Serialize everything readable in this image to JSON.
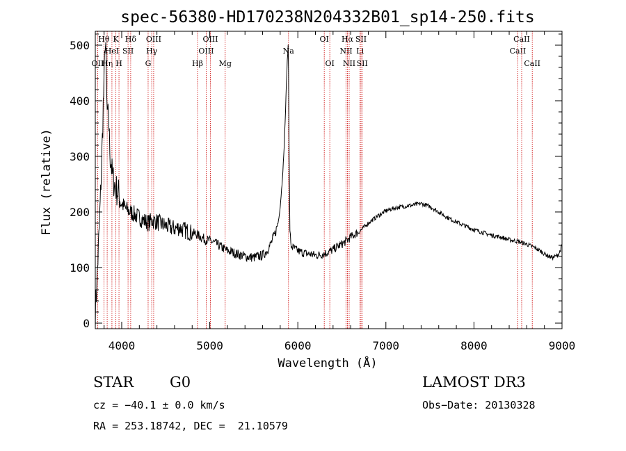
{
  "chart_data": {
    "type": "line",
    "title": "spec-56380-HD170238N204332B01_sp14-250.fits",
    "xlabel": "Wavelength (Å)",
    "ylabel": "Flux (relative)",
    "xlim": [
      3700,
      9000
    ],
    "ylim": [
      -10,
      525
    ],
    "xticks": [
      4000,
      5000,
      6000,
      7000,
      8000,
      9000
    ],
    "yticks": [
      0,
      100,
      200,
      300,
      400,
      500
    ],
    "grid": false,
    "line_color": "#000000",
    "marker_color": "#cc0000",
    "series": [
      {
        "x": [
          3700,
          3720,
          3740,
          3760,
          3780,
          3790,
          3800,
          3810,
          3820,
          3830,
          3840,
          3850,
          3860,
          3870,
          3880,
          3890,
          3900,
          3920,
          3940,
          3960,
          3980,
          4000,
          4050,
          4100,
          4150,
          4200,
          4250,
          4300,
          4350,
          4400,
          4450,
          4500,
          4550,
          4600,
          4650,
          4700,
          4750,
          4800,
          4850,
          4900,
          4950,
          5000,
          5050,
          5100,
          5150,
          5200,
          5250,
          5300,
          5400,
          5500,
          5600,
          5650,
          5700,
          5750,
          5780,
          5800,
          5820,
          5840,
          5860,
          5870,
          5880,
          5890,
          5895,
          5900,
          5910,
          5920,
          5950,
          6000,
          6050,
          6100,
          6150,
          6200,
          6250,
          6300,
          6350,
          6400,
          6450,
          6500,
          6550,
          6600,
          6650,
          6700,
          6750,
          6800,
          6900,
          7000,
          7100,
          7200,
          7300,
          7400,
          7500,
          7600,
          7700,
          7800,
          7900,
          8000,
          8100,
          8200,
          8300,
          8400,
          8500,
          8600,
          8700,
          8750,
          8800,
          8850,
          8900,
          8950,
          8980,
          9000
        ],
        "y": [
          20,
          80,
          150,
          230,
          330,
          390,
          430,
          510,
          480,
          400,
          360,
          380,
          330,
          300,
          290,
          270,
          260,
          250,
          240,
          235,
          225,
          215,
          205,
          200,
          195,
          190,
          185,
          180,
          185,
          182,
          178,
          175,
          172,
          170,
          172,
          168,
          165,
          162,
          160,
          155,
          150,
          148,
          145,
          140,
          135,
          130,
          128,
          125,
          120,
          118,
          122,
          130,
          145,
          165,
          185,
          210,
          250,
          300,
          380,
          430,
          470,
          500,
          450,
          320,
          170,
          140,
          135,
          130,
          127,
          125,
          124,
          122,
          123,
          125,
          128,
          132,
          138,
          142,
          148,
          155,
          160,
          165,
          172,
          180,
          192,
          202,
          207,
          210,
          212,
          215,
          210,
          200,
          190,
          182,
          175,
          168,
          163,
          158,
          155,
          150,
          147,
          142,
          135,
          130,
          125,
          120,
          118,
          122,
          130,
          140
        ]
      }
    ],
    "line_markers": [
      {
        "name": "OII",
        "x": 3727,
        "row": 2
      },
      {
        "name": "Hθ",
        "x": 3798,
        "row": 0
      },
      {
        "name": "Hη",
        "x": 3835,
        "row": 2
      },
      {
        "name": "HeI",
        "x": 3889,
        "row": 1
      },
      {
        "name": "K",
        "x": 3934,
        "row": 0
      },
      {
        "name": "H",
        "x": 3969,
        "row": 2
      },
      {
        "name": "SII",
        "x": 4072,
        "row": 1
      },
      {
        "name": "Hδ",
        "x": 4102,
        "row": 0
      },
      {
        "name": "G",
        "x": 4300,
        "row": 2
      },
      {
        "name": "Hγ",
        "x": 4341,
        "row": 1
      },
      {
        "name": "OIII",
        "x": 4363,
        "row": 0
      },
      {
        "name": "Hβ",
        "x": 4861,
        "row": 2
      },
      {
        "name": "OIII",
        "x": 4959,
        "row": 1
      },
      {
        "name": "OIII",
        "x": 5007,
        "row": 0
      },
      {
        "name": "Mg",
        "x": 5175,
        "row": 2
      },
      {
        "name": "Na",
        "x": 5894,
        "row": 1
      },
      {
        "name": "OI",
        "x": 6300,
        "row": 0
      },
      {
        "name": "OI",
        "x": 6363,
        "row": 2
      },
      {
        "name": "NII",
        "x": 6548,
        "row": 1
      },
      {
        "name": "Hα",
        "x": 6563,
        "row": 0
      },
      {
        "name": "NII",
        "x": 6583,
        "row": 2
      },
      {
        "name": "Li",
        "x": 6707,
        "row": 1
      },
      {
        "name": "SII",
        "x": 6717,
        "row": 0
      },
      {
        "name": "SII",
        "x": 6731,
        "row": 2
      },
      {
        "name": "CaII",
        "x": 8498,
        "row": 1
      },
      {
        "name": "CaII",
        "x": 8542,
        "row": 0
      },
      {
        "name": "CaII",
        "x": 8662,
        "row": 2
      }
    ]
  },
  "info": {
    "class": "STAR",
    "subclass": "G0",
    "survey": "LAMOST DR3",
    "cz": "cz = −40.1 ± 0.0 km/s",
    "obs_date": "Obs−Date: 20130328",
    "coords": "RA = 253.18742, DEC =  21.10579"
  }
}
